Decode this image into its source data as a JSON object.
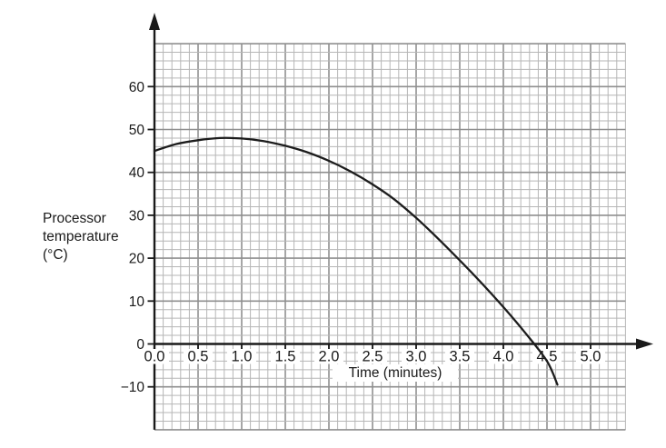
{
  "chart_data": {
    "type": "line",
    "title": "",
    "xlabel": "Time (minutes)",
    "ylabel": "Processor temperature (°C)",
    "ylabel_lines": [
      "Processor",
      "temperature",
      "(°C)"
    ],
    "x_axis": {
      "min": 0,
      "max": 5.4,
      "major_step": 0.5,
      "minor_step": 0.1,
      "tick_values": [
        0,
        0.5,
        1,
        1.5,
        2,
        2.5,
        3,
        3.5,
        4,
        4.5,
        5
      ],
      "tick_labels": [
        "0.0",
        "0.5",
        "1.0",
        "1.5",
        "2.0",
        "2.5",
        "3.0",
        "3.5",
        "4.0",
        "4.5",
        "5.0"
      ]
    },
    "y_axis": {
      "min": -20,
      "max": 70,
      "major_step": 10,
      "minor_step": 2,
      "tick_values": [
        60,
        50,
        40,
        30,
        20,
        10,
        0,
        -10
      ],
      "tick_labels": [
        "60",
        "50",
        "40",
        "30",
        "20",
        "10",
        "0",
        "−10"
      ]
    },
    "grid": {
      "on": true,
      "minor_color": "#b6b6b6",
      "major_color": "#8f8f8f",
      "background": "#ffffff"
    },
    "axis_color": "#1a1a1a",
    "legend_position": "none",
    "series": [
      {
        "name": "processor temperature",
        "color": "#1c1c1c",
        "points": [
          [
            0.0,
            45.0
          ],
          [
            0.25,
            46.6
          ],
          [
            0.5,
            47.5
          ],
          [
            0.75,
            48.0
          ],
          [
            1.0,
            47.9
          ],
          [
            1.25,
            47.3
          ],
          [
            1.5,
            46.2
          ],
          [
            1.75,
            44.7
          ],
          [
            2.0,
            42.7
          ],
          [
            2.25,
            40.2
          ],
          [
            2.5,
            37.2
          ],
          [
            2.75,
            33.7
          ],
          [
            3.0,
            29.4
          ],
          [
            3.25,
            24.6
          ],
          [
            3.5,
            19.5
          ],
          [
            3.75,
            14.2
          ],
          [
            4.0,
            8.6
          ],
          [
            4.25,
            2.6
          ],
          [
            4.5,
            -4.0
          ],
          [
            4.62,
            -9.5
          ]
        ]
      }
    ],
    "key_features": {
      "initial_temperature": 45,
      "peak_temperature": 48,
      "peak_time_minutes": 0.8,
      "time_axis_crossing_minutes": 4.35,
      "final_temperature": -9.5
    }
  }
}
